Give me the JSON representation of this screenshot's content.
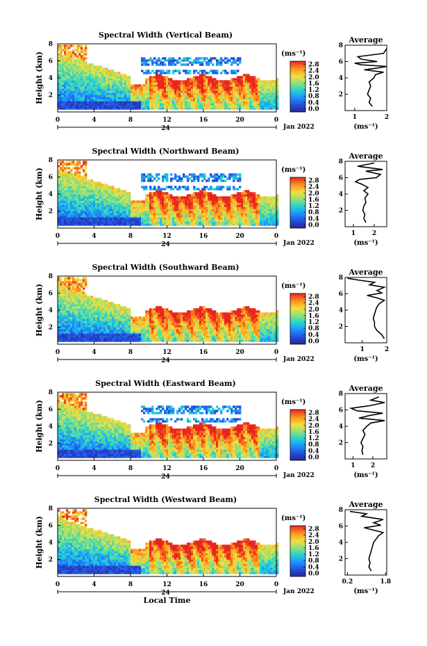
{
  "chart_data": [
    {
      "type": "heatmap",
      "title": "Spectral Width (Vertical Beam)",
      "ylabel": "Height (km)",
      "xlabel": "",
      "x_ticks": [
        "0",
        "4",
        "8",
        "12",
        "16",
        "20",
        "0"
      ],
      "y_ticks": [
        "2",
        "4",
        "6",
        "8"
      ],
      "day_label": "24",
      "date_label": "Jan 2022",
      "unit_label": "(ms⁻¹)",
      "colorbar_ticks": [
        "2.8",
        "2.4",
        "2.0",
        "1.6",
        "1.2",
        "0.8",
        "0.4",
        "0.0"
      ],
      "colorbar_range": [
        0.0,
        2.8
      ],
      "avg": {
        "title": "Average",
        "unit_label": "(ms⁻¹)",
        "x_ticks": [
          "1",
          "2"
        ],
        "xlim": [
          0.7,
          2.0
        ],
        "y_ticks": [
          "2",
          "4",
          "6",
          "8"
        ],
        "profile": [
          [
            1.55,
            0.5
          ],
          [
            1.45,
            1.0
          ],
          [
            1.5,
            1.5
          ],
          [
            1.4,
            2.0
          ],
          [
            1.45,
            2.5
          ],
          [
            1.5,
            3.0
          ],
          [
            1.45,
            3.5
          ],
          [
            1.6,
            4.0
          ],
          [
            1.65,
            4.4
          ],
          [
            1.9,
            4.7
          ],
          [
            1.3,
            5.0
          ],
          [
            1.7,
            5.2
          ],
          [
            2.0,
            5.4
          ],
          [
            1.2,
            5.6
          ],
          [
            1.0,
            5.8
          ],
          [
            1.7,
            6.0
          ],
          [
            1.2,
            6.3
          ],
          [
            1.1,
            6.6
          ],
          [
            1.9,
            7.0
          ],
          [
            2.0,
            7.6
          ]
        ]
      }
    },
    {
      "type": "heatmap",
      "title": "Spectral Width (Northward Beam)",
      "ylabel": "Height (km)",
      "xlabel": "",
      "x_ticks": [
        "0",
        "4",
        "8",
        "12",
        "16",
        "20",
        "0"
      ],
      "y_ticks": [
        "2",
        "4",
        "6",
        "8"
      ],
      "day_label": "24",
      "date_label": "Jan 2022",
      "unit_label": "(ms⁻¹)",
      "colorbar_ticks": [
        "2.8",
        "2.4",
        "2.0",
        "1.6",
        "1.2",
        "0.8",
        "0.4",
        "0.0"
      ],
      "colorbar_range": [
        0.0,
        2.8
      ],
      "avg": {
        "title": "Average",
        "unit_label": "(ms⁻¹)",
        "x_ticks": [
          "1",
          "2"
        ],
        "xlim": [
          0.6,
          2.6
        ],
        "y_ticks": [
          "2",
          "4",
          "6",
          "8"
        ],
        "profile": [
          [
            1.6,
            0.5
          ],
          [
            1.5,
            1.0
          ],
          [
            1.55,
            1.5
          ],
          [
            1.45,
            2.0
          ],
          [
            1.5,
            2.5
          ],
          [
            1.6,
            3.0
          ],
          [
            1.55,
            3.5
          ],
          [
            1.7,
            4.0
          ],
          [
            1.5,
            4.4
          ],
          [
            1.7,
            4.8
          ],
          [
            1.4,
            5.2
          ],
          [
            1.1,
            5.5
          ],
          [
            1.3,
            5.8
          ],
          [
            2.1,
            6.0
          ],
          [
            2.3,
            6.4
          ],
          [
            1.6,
            6.8
          ],
          [
            2.4,
            7.0
          ],
          [
            1.2,
            7.4
          ],
          [
            2.0,
            7.8
          ]
        ]
      }
    },
    {
      "type": "heatmap",
      "title": "Spectral Width (Southward Beam)",
      "ylabel": "Height (km)",
      "xlabel": "",
      "x_ticks": [
        "0",
        "4",
        "8",
        "12",
        "16",
        "20",
        "0"
      ],
      "y_ticks": [
        "2",
        "4",
        "6",
        "8"
      ],
      "day_label": "24",
      "date_label": "Jan 2022",
      "unit_label": "(ms⁻¹)",
      "colorbar_ticks": [
        "2.8",
        "2.4",
        "2.0",
        "1.6",
        "1.2",
        "0.8",
        "0.4",
        "0.0"
      ],
      "colorbar_range": [
        0.0,
        2.8
      ],
      "avg": {
        "title": "Average",
        "unit_label": "(ms⁻¹)",
        "x_ticks": [
          "1",
          "2"
        ],
        "xlim": [
          0.3,
          2.0
        ],
        "y_ticks": [
          "2",
          "4",
          "6",
          "8"
        ],
        "profile": [
          [
            1.9,
            0.5
          ],
          [
            1.8,
            1.0
          ],
          [
            1.6,
            1.5
          ],
          [
            1.5,
            2.0
          ],
          [
            1.5,
            2.5
          ],
          [
            1.45,
            3.0
          ],
          [
            1.5,
            3.5
          ],
          [
            1.55,
            4.0
          ],
          [
            1.6,
            4.4
          ],
          [
            1.7,
            4.8
          ],
          [
            1.9,
            5.2
          ],
          [
            1.6,
            5.5
          ],
          [
            1.2,
            5.8
          ],
          [
            1.8,
            6.1
          ],
          [
            1.6,
            6.4
          ],
          [
            1.9,
            6.8
          ],
          [
            1.3,
            7.1
          ],
          [
            1.5,
            7.4
          ],
          [
            0.8,
            7.7
          ],
          [
            0.4,
            7.9
          ]
        ]
      }
    },
    {
      "type": "heatmap",
      "title": "Spectral Width (Eastward Beam)",
      "ylabel": "Height (km)",
      "xlabel": "",
      "x_ticks": [
        "0",
        "4",
        "8",
        "12",
        "16",
        "20",
        "0"
      ],
      "y_ticks": [
        "2",
        "4",
        "6",
        "8"
      ],
      "day_label": "24",
      "date_label": "Jan 2022",
      "unit_label": "(ms⁻¹)",
      "colorbar_ticks": [
        "2.8",
        "2.4",
        "2.0",
        "1.6",
        "1.2",
        "0.8",
        "0.4",
        "0.0"
      ],
      "colorbar_range": [
        0.0,
        2.8
      ],
      "avg": {
        "title": "Average",
        "unit_label": "(ms⁻¹)",
        "x_ticks": [
          "1",
          "2"
        ],
        "xlim": [
          0.6,
          2.7
        ],
        "y_ticks": [
          "2",
          "4",
          "6",
          "8"
        ],
        "profile": [
          [
            1.5,
            0.5
          ],
          [
            1.45,
            1.0
          ],
          [
            1.5,
            1.5
          ],
          [
            1.4,
            2.0
          ],
          [
            1.5,
            2.5
          ],
          [
            1.6,
            3.0
          ],
          [
            1.5,
            3.5
          ],
          [
            1.7,
            4.0
          ],
          [
            1.9,
            4.4
          ],
          [
            2.6,
            4.7
          ],
          [
            1.3,
            5.0
          ],
          [
            1.8,
            5.3
          ],
          [
            2.5,
            5.6
          ],
          [
            1.2,
            5.9
          ],
          [
            0.9,
            6.2
          ],
          [
            1.8,
            6.5
          ],
          [
            2.6,
            6.9
          ],
          [
            1.9,
            7.2
          ],
          [
            2.3,
            7.6
          ]
        ]
      }
    },
    {
      "type": "heatmap",
      "title": "Spectral Width (Westward Beam)",
      "ylabel": "Height (km)",
      "xlabel": "Local Time",
      "x_ticks": [
        "0",
        "4",
        "8",
        "12",
        "16",
        "20",
        "0"
      ],
      "y_ticks": [
        "2",
        "4",
        "6",
        "8"
      ],
      "day_label": "24",
      "date_label": "Jan 2022",
      "unit_label": "(ms⁻¹)",
      "colorbar_ticks": [
        "2.8",
        "2.4",
        "2.0",
        "1.6",
        "1.2",
        "0.8",
        "0.4",
        "0.0"
      ],
      "colorbar_range": [
        0.0,
        2.8
      ],
      "avg": {
        "title": "Average",
        "unit_label": "(ms⁻¹)",
        "x_ticks": [
          "0.2",
          "1.8"
        ],
        "xlim": [
          0.1,
          1.85
        ],
        "y_ticks": [
          "2",
          "4",
          "6",
          "8"
        ],
        "profile": [
          [
            1.2,
            0.5
          ],
          [
            1.1,
            1.0
          ],
          [
            1.15,
            1.5
          ],
          [
            1.1,
            2.0
          ],
          [
            1.15,
            2.5
          ],
          [
            1.2,
            3.0
          ],
          [
            1.25,
            3.5
          ],
          [
            1.3,
            4.0
          ],
          [
            1.4,
            4.4
          ],
          [
            1.5,
            4.8
          ],
          [
            1.7,
            5.2
          ],
          [
            1.3,
            5.5
          ],
          [
            0.9,
            5.8
          ],
          [
            1.6,
            6.1
          ],
          [
            1.3,
            6.4
          ],
          [
            1.7,
            6.8
          ],
          [
            0.8,
            7.2
          ],
          [
            1.0,
            7.5
          ],
          [
            0.3,
            7.8
          ]
        ]
      }
    }
  ]
}
